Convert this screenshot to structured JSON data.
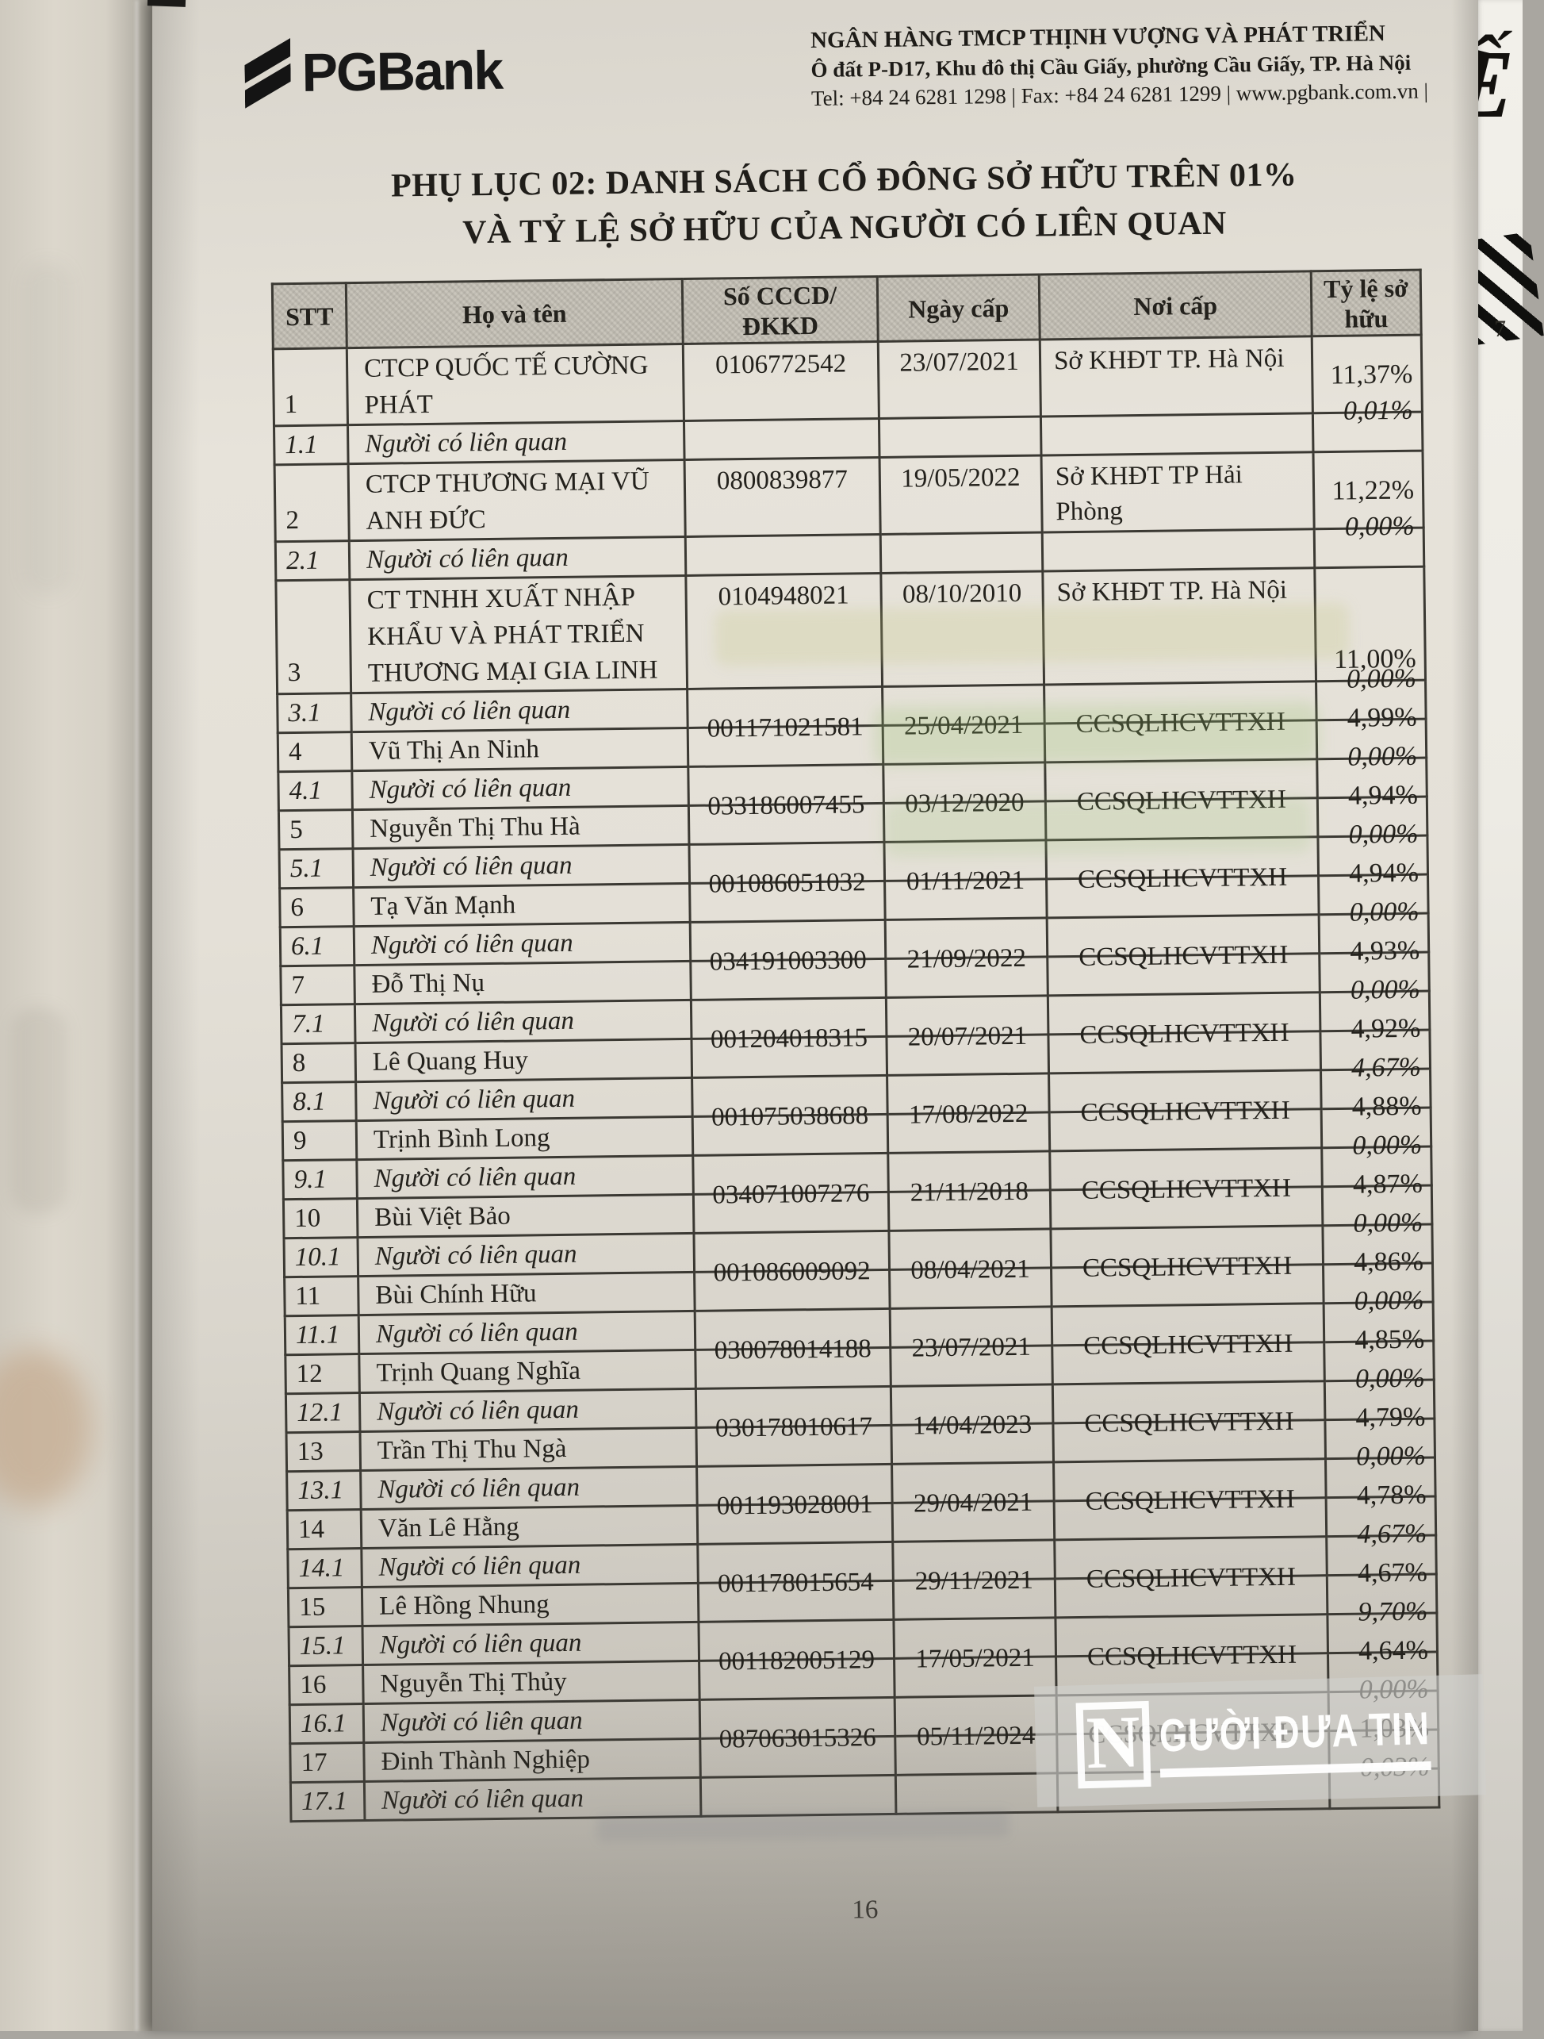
{
  "bank_header": {
    "logo_text": "PGBank",
    "name_line": "NGÂN HÀNG TMCP THỊNH VƯỢNG VÀ PHÁT TRIỂN",
    "address_line": "Ô đất P-D17, Khu đô thị Cầu Giấy, phường Cầu Giấy, TP. Hà Nội",
    "contact_line": "Tel: +84 24 6281 1298 | Fax: +84 24 6281 1299 | www.pgbank.com.vn |"
  },
  "title": {
    "line1": "PHỤ LỤC 02: DANH SÁCH CỔ ĐÔNG SỞ HỮU TRÊN 01%",
    "line2": "VÀ TỶ LỆ SỞ HỮU CỦA NGƯỜI CÓ LIÊN QUAN"
  },
  "table": {
    "headers": [
      "STT",
      "Họ và tên",
      "Số CCCD/\nĐKKD",
      "Ngày cấp",
      "Nơi cấp",
      "Tỷ lệ sở\nhữu"
    ],
    "related_label": "Người có liên quan",
    "rows": [
      {
        "stt": "1",
        "lines": 2,
        "name": "CTCP QUỐC TẾ CƯỜNG PHÁT",
        "cccd": "0106772542",
        "ngay_cap": "23/07/2021",
        "noi_cap": "Sở KHĐT TP. Hà Nội",
        "ty_le": "11,37%",
        "sub": {
          "stt": "1.1",
          "ty_le": "0,01%"
        }
      },
      {
        "stt": "2",
        "lines": 2,
        "name": "CTCP THƯƠNG MẠI VŨ ANH ĐỨC",
        "cccd": "0800839877",
        "ngay_cap": "19/05/2022",
        "noi_cap": "Sở KHĐT TP Hải Phòng",
        "ty_le": "11,22%",
        "sub": {
          "stt": "2.1",
          "ty_le": "0,00%"
        }
      },
      {
        "stt": "3",
        "lines": 3,
        "name": "CT TNHH XUẤT NHẬP KHẨU VÀ PHÁT TRIỂN THƯƠNG MẠI GIA LINH",
        "cccd": "0104948021",
        "ngay_cap": "08/10/2010",
        "noi_cap": "Sở KHĐT TP. Hà Nội",
        "ty_le": "11,00%",
        "sub": {
          "stt": "3.1",
          "ty_le": "0,00%"
        }
      },
      {
        "stt": "4",
        "lines": 1,
        "name": "Vũ Thị An Ninh",
        "cccd": "001171021581",
        "ngay_cap": "25/04/2021",
        "noi_cap": "CCSQLHCVTTXH",
        "ty_le": "4,99%",
        "sub": {
          "stt": "4.1",
          "ty_le": "0,00%"
        }
      },
      {
        "stt": "5",
        "lines": 1,
        "name": "Nguyễn Thị Thu Hà",
        "cccd": "033186007455",
        "ngay_cap": "03/12/2020",
        "noi_cap": "CCSQLHCVTTXH",
        "ty_le": "4,94%",
        "sub": {
          "stt": "5.1",
          "ty_le": "0,00%"
        }
      },
      {
        "stt": "6",
        "lines": 1,
        "name": "Tạ Văn Mạnh",
        "cccd": "001086051032",
        "ngay_cap": "01/11/2021",
        "noi_cap": "CCSQLHCVTTXH",
        "ty_le": "4,94%",
        "sub": {
          "stt": "6.1",
          "ty_le": "0,00%"
        }
      },
      {
        "stt": "7",
        "lines": 1,
        "name": "Đỗ Thị Nụ",
        "cccd": "034191003300",
        "ngay_cap": "21/09/2022",
        "noi_cap": "CCSQLHCVTTXH",
        "ty_le": "4,93%",
        "sub": {
          "stt": "7.1",
          "ty_le": "0,00%"
        }
      },
      {
        "stt": "8",
        "lines": 1,
        "name": "Lê Quang Huy",
        "cccd": "001204018315",
        "ngay_cap": "20/07/2021",
        "noi_cap": "CCSQLHCVTTXH",
        "ty_le": "4,92%",
        "sub": {
          "stt": "8.1",
          "ty_le": "4,67%"
        }
      },
      {
        "stt": "9",
        "lines": 1,
        "name": "Trịnh Bình Long",
        "cccd": "001075038688",
        "ngay_cap": "17/08/2022",
        "noi_cap": "CCSQLHCVTTXH",
        "ty_le": "4,88%",
        "sub": {
          "stt": "9.1",
          "ty_le": "0,00%"
        }
      },
      {
        "stt": "10",
        "lines": 1,
        "name": "Bùi Việt Bảo",
        "cccd": "034071007276",
        "ngay_cap": "21/11/2018",
        "noi_cap": "CCSQLHCVTTXH",
        "ty_le": "4,87%",
        "sub": {
          "stt": "10.1",
          "ty_le": "0,00%"
        }
      },
      {
        "stt": "11",
        "lines": 1,
        "name": "Bùi Chính Hữu",
        "cccd": "001086009092",
        "ngay_cap": "08/04/2021",
        "noi_cap": "CCSQLHCVTTXH",
        "ty_le": "4,86%",
        "sub": {
          "stt": "11.1",
          "ty_le": "0,00%"
        }
      },
      {
        "stt": "12",
        "lines": 1,
        "name": "Trịnh Quang Nghĩa",
        "cccd": "030078014188",
        "ngay_cap": "23/07/2021",
        "noi_cap": "CCSQLHCVTTXH",
        "ty_le": "4,85%",
        "sub": {
          "stt": "12.1",
          "ty_le": "0,00%"
        }
      },
      {
        "stt": "13",
        "lines": 1,
        "name": "Trần Thị Thu Ngà",
        "cccd": "030178010617",
        "ngay_cap": "14/04/2023",
        "noi_cap": "CCSQLHCVTTXH",
        "ty_le": "4,79%",
        "sub": {
          "stt": "13.1",
          "ty_le": "0,00%"
        }
      },
      {
        "stt": "14",
        "lines": 1,
        "name": "Văn Lê Hằng",
        "cccd": "001193028001",
        "ngay_cap": "29/04/2021",
        "noi_cap": "CCSQLHCVTTXH",
        "ty_le": "4,78%",
        "sub": {
          "stt": "14.1",
          "ty_le": "4,67%"
        }
      },
      {
        "stt": "15",
        "lines": 1,
        "name": "Lê Hồng Nhung",
        "cccd": "001178015654",
        "ngay_cap": "29/11/2021",
        "noi_cap": "CCSQLHCVTTXH",
        "ty_le": "4,67%",
        "sub": {
          "stt": "15.1",
          "ty_le": "9,70%"
        }
      },
      {
        "stt": "16",
        "lines": 1,
        "name": "Nguyễn Thị Thủy",
        "cccd": "001182005129",
        "ngay_cap": "17/05/2021",
        "noi_cap": "CCSQLHCVTTXH",
        "ty_le": "4,64%",
        "sub": {
          "stt": "16.1",
          "ty_le": "0,00%"
        }
      },
      {
        "stt": "17",
        "lines": 1,
        "name": "Đinh Thành Nghiệp",
        "cccd": "087063015326",
        "ngay_cap": "05/11/2024",
        "noi_cap": "CCSQLHCVTTXH",
        "ty_le": "1,03%",
        "sub": {
          "stt": "17.1",
          "ty_le": "0,03%"
        }
      }
    ]
  },
  "watermark": {
    "logo_letter": "N",
    "text": "GƯỜI ĐƯA TIN"
  },
  "side_page": {
    "letter": "Ế",
    "digit": "7"
  },
  "footer": {
    "page_number": "16"
  }
}
